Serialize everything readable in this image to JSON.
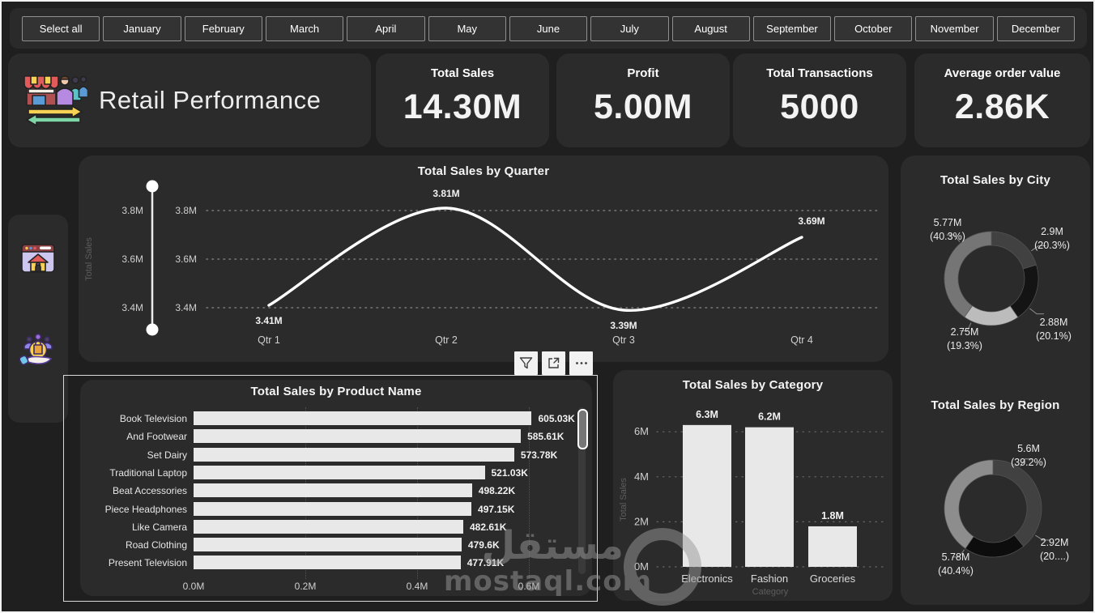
{
  "slicer": {
    "items": [
      "Select all",
      "January",
      "February",
      "March",
      "April",
      "May",
      "June",
      "July",
      "August",
      "September",
      "October",
      "November",
      "December"
    ]
  },
  "header": {
    "title": "Retail Performance",
    "icon": "storefront-people-arrows-icon"
  },
  "kpis": [
    {
      "label": "Total Sales",
      "value": "14.30M"
    },
    {
      "label": "Profit",
      "value": "5.00M"
    },
    {
      "label": "Total Transactions",
      "value": "5000"
    },
    {
      "label": "Average order value",
      "value": "2.86K"
    }
  ],
  "sidebar": {
    "icons": [
      "home-browser-icon",
      "shopping-hand-icon"
    ]
  },
  "toolbar": {
    "buttons": [
      "filter",
      "focus-mode",
      "more-options"
    ]
  },
  "slider": {
    "ticks": [
      "3.8M",
      "3.6M",
      "3.4M"
    ]
  },
  "watermark": {
    "text_ar": "مستقل",
    "text_domain": "mostaql.com"
  },
  "colors": {
    "background": "#1f1f1f",
    "panel": "#2b2b2b",
    "bar": "#e8e8e8",
    "line": "#ffffff",
    "grid": "#7a7a7a",
    "axis_text": "#cfcfcf"
  },
  "chart_data": [
    {
      "id": "sales_by_quarter",
      "type": "line",
      "title": "Total Sales by Quarter",
      "x": [
        "Qtr 1",
        "Qtr 2",
        "Qtr 3",
        "Qtr 4"
      ],
      "values": [
        3.41,
        3.81,
        3.39,
        3.69
      ],
      "labels": [
        "3.41M",
        "3.81M",
        "3.39M",
        "3.69M"
      ],
      "ylabel": "Total Sales",
      "yticks": [
        "3.8M",
        "3.6M",
        "3.4M"
      ],
      "ytick_values": [
        3.8,
        3.6,
        3.4
      ],
      "ylim": [
        3.3,
        3.95
      ],
      "grid": "dotted-horizontal",
      "legend": "none",
      "line_color": "#ffffff"
    },
    {
      "id": "sales_by_product_name",
      "type": "bar",
      "orientation": "horizontal",
      "title": "Total Sales by Product Name",
      "categories": [
        "Book Television",
        "And Footwear",
        "Set Dairy",
        "Traditional Laptop",
        "Beat Accessories",
        "Piece Headphones",
        "Like Camera",
        "Road Clothing",
        "Present Television"
      ],
      "values": [
        605.03,
        585.61,
        573.78,
        521.03,
        498.22,
        497.15,
        482.61,
        479.6,
        477.91
      ],
      "labels": [
        "605.03K",
        "585.61K",
        "573.78K",
        "521.03K",
        "498.22K",
        "497.15K",
        "482.61K",
        "479.6K",
        "477.91K"
      ],
      "xticks": [
        "0.0M",
        "0.2M",
        "0.4M",
        "0.6M"
      ],
      "xtick_values": [
        0,
        200,
        400,
        600
      ],
      "xlim": [
        0,
        650
      ],
      "scrollbar": true,
      "bar_color": "#e8e8e8"
    },
    {
      "id": "sales_by_category",
      "type": "bar",
      "orientation": "vertical",
      "title": "Total Sales by Category",
      "categories": [
        "Electronics",
        "Fashion",
        "Groceries"
      ],
      "values": [
        6.3,
        6.2,
        1.8
      ],
      "labels": [
        "6.3M",
        "6.2M",
        "1.8M"
      ],
      "yticks": [
        "6M",
        "4M",
        "2M",
        "0M"
      ],
      "ytick_values": [
        6,
        4,
        2,
        0
      ],
      "ylim": [
        0,
        6.3
      ],
      "xlabel": "Category",
      "ylabel": "Total Sales",
      "bar_color": "#e8e8e8"
    },
    {
      "id": "sales_by_city",
      "type": "pie",
      "title": "Total Sales by City",
      "slices": [
        {
          "label": "2.9M",
          "pct_label": "(20.3%)",
          "pct": 20.3,
          "color": "#414141",
          "label_pos": "top-right"
        },
        {
          "label": "2.88M",
          "pct_label": "(20.1%)",
          "pct": 20.1,
          "color": "#141414",
          "label_pos": "bottom-right"
        },
        {
          "label": "2.75M",
          "pct_label": "(19.3%)",
          "pct": 19.3,
          "color": "#bcbcbc",
          "label_pos": "bottom-left"
        },
        {
          "label": "5.77M",
          "pct_label": "(40.3%)",
          "pct": 40.3,
          "color": "#757575",
          "label_pos": "top-left"
        }
      ]
    },
    {
      "id": "sales_by_region",
      "type": "pie",
      "title": "Total Sales by Region",
      "slices": [
        {
          "label": "5.6M",
          "pct_label": "(39.2%)",
          "pct": 39.2,
          "color": "#414141",
          "label_pos": "top-right"
        },
        {
          "label": "2.92M",
          "pct_label": "(20....)",
          "pct": 20.4,
          "color": "#0d0d0d",
          "label_pos": "bottom-right"
        },
        {
          "label": "5.78M",
          "pct_label": "(40.4%)",
          "pct": 40.4,
          "color": "#8d8d8d",
          "label_pos": "bottom-left"
        }
      ]
    }
  ]
}
